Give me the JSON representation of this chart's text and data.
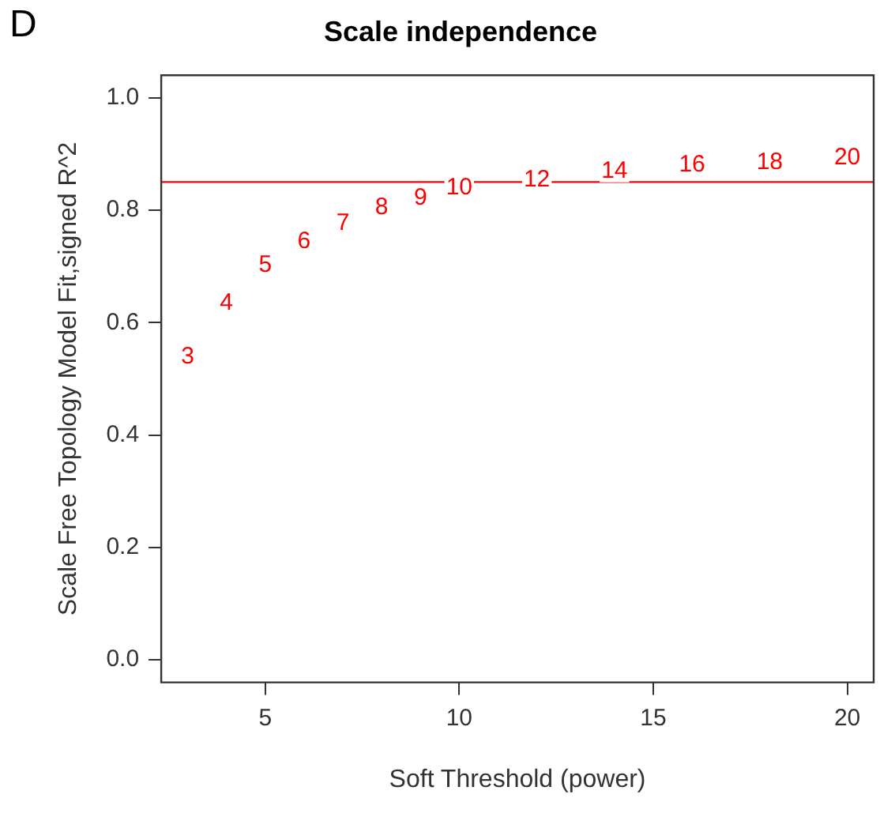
{
  "chart_data": {
    "type": "scatter",
    "title": "Scale independence",
    "xlabel": "Soft Threshold (power)",
    "ylabel": "Scale Free Topology Model Fit,signed R^2",
    "annotations": [
      "D",
      {
        "text": "3",
        "x": 3,
        "y": 0.539
      },
      {
        "text": "4",
        "x": 4,
        "y": 0.634
      },
      {
        "text": "5",
        "x": 5,
        "y": 0.702
      },
      {
        "text": "6",
        "x": 6,
        "y": 0.744
      },
      {
        "text": "7",
        "x": 7,
        "y": 0.777
      },
      {
        "text": "8",
        "x": 8,
        "y": 0.804
      },
      {
        "text": "9",
        "x": 9,
        "y": 0.821
      },
      {
        "text": "10",
        "x": 10,
        "y": 0.839
      },
      {
        "text": "12",
        "x": 12,
        "y": 0.854
      },
      {
        "text": "14",
        "x": 14,
        "y": 0.869
      },
      {
        "text": "16",
        "x": 16,
        "y": 0.881
      },
      {
        "text": "18",
        "x": 18,
        "y": 0.884
      },
      {
        "text": "20",
        "x": 20,
        "y": 0.893
      }
    ],
    "color": "#ff0000",
    "xlim": [
      2.32,
      20.68
    ],
    "xticks": [
      5,
      10,
      15,
      20
    ],
    "ylim": [
      -0.04,
      1.04
    ],
    "yticks": [
      {
        "value": 0,
        "label": "0.0"
      },
      0.2,
      0.4,
      0.6,
      0.8,
      {
        "value": 1,
        "label": "1.0"
      }
    ],
    "ref_lines": [
      {
        "axis": "y",
        "value": 0.85,
        "color": "#ff0000"
      }
    ]
  }
}
